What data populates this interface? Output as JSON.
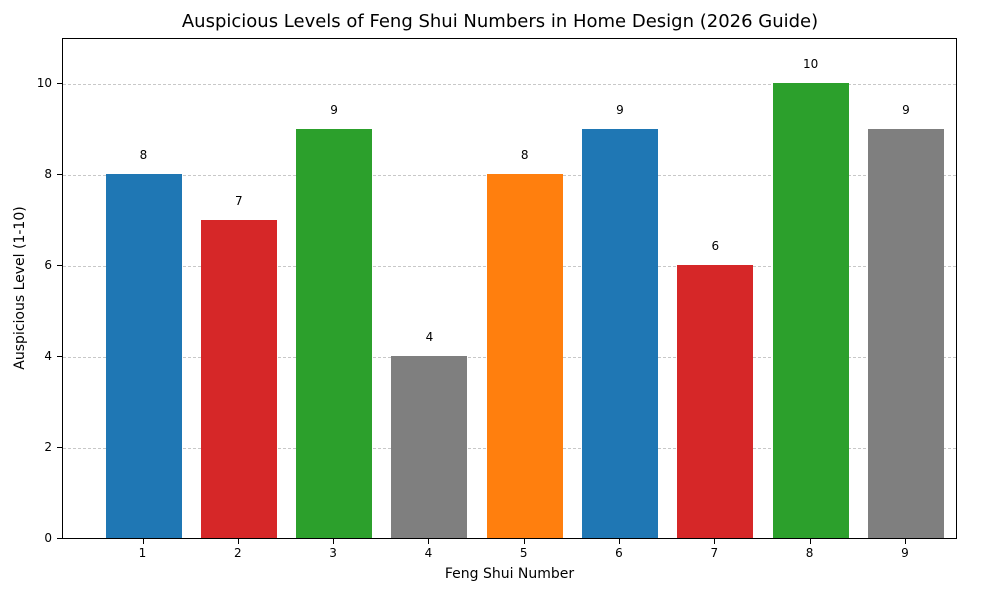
{
  "chart_data": {
    "type": "bar",
    "title": "Auspicious Levels of Feng Shui Numbers in Home Design (2026 Guide)",
    "xlabel": "Feng Shui Number",
    "ylabel": "Auspicious Level (1-10)",
    "categories": [
      "1",
      "2",
      "3",
      "4",
      "5",
      "6",
      "7",
      "8",
      "9"
    ],
    "values": [
      8,
      7,
      9,
      4,
      8,
      9,
      6,
      10,
      9
    ],
    "colors": [
      "#1f77b4",
      "#d62728",
      "#2ca02c",
      "#7f7f7f",
      "#ff7f0e",
      "#1f77b4",
      "#d62728",
      "#2ca02c",
      "#7f7f7f"
    ],
    "ylim": [
      0,
      11
    ],
    "yticks": [
      0,
      2,
      4,
      6,
      8,
      10
    ],
    "grid": "y, dashed",
    "legend": null
  }
}
